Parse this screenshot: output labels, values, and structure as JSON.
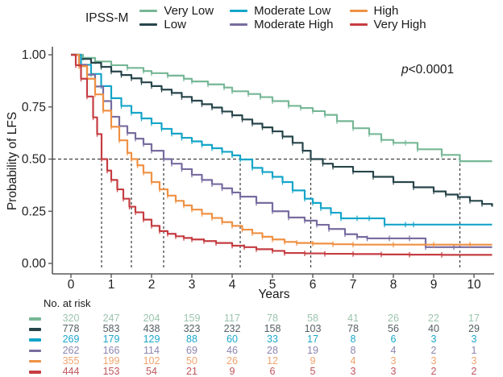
{
  "legend": {
    "title": "IPSS-M",
    "items": [
      {
        "label": "Very Low",
        "color": "#76b796"
      },
      {
        "label": "Low",
        "color": "#27454b"
      },
      {
        "label": "Moderate Low",
        "color": "#14a5c9"
      },
      {
        "label": "Moderate High",
        "color": "#786c9f"
      },
      {
        "label": "High",
        "color": "#ef9143"
      },
      {
        "label": "Very High",
        "color": "#c53d42"
      }
    ]
  },
  "pvalue": {
    "italic_part": "p",
    "rest": "<0.0001"
  },
  "chart_data": {
    "type": "line",
    "subtype": "kaplan-meier-step",
    "title": "",
    "xlabel": "Years",
    "ylabel": "Probability of LFS",
    "xlim": [
      -0.45,
      10.75
    ],
    "ylim": [
      0,
      1.04
    ],
    "xticks": [
      0,
      1,
      2,
      3,
      4,
      5,
      6,
      7,
      8,
      9,
      10
    ],
    "ytick_labels": [
      "1.00",
      "0.75",
      "0.50",
      "0.25",
      "0.00"
    ],
    "ytick_values": [
      1.0,
      0.75,
      0.5,
      0.25,
      0.0
    ],
    "grid": false,
    "legend_position": "top",
    "annotation": "p<0.0001",
    "axis_color": "#58595b",
    "dashed_color": "#3f3f3f",
    "median_line_y": 0.5,
    "median_lines_x": [
      0.76,
      1.5,
      2.3,
      4.2,
      5.95,
      9.65
    ],
    "series": [
      {
        "name": "Very Low",
        "color": "#76b796",
        "points": [
          [
            0,
            1.0
          ],
          [
            0.3,
            0.985
          ],
          [
            0.6,
            0.968
          ],
          [
            1,
            0.95
          ],
          [
            1.4,
            0.937
          ],
          [
            1.8,
            0.922
          ],
          [
            2,
            0.912
          ],
          [
            2.4,
            0.9
          ],
          [
            2.8,
            0.885
          ],
          [
            3,
            0.872
          ],
          [
            3.4,
            0.858
          ],
          [
            3.8,
            0.843
          ],
          [
            4,
            0.825
          ],
          [
            4.4,
            0.812
          ],
          [
            4.7,
            0.797
          ],
          [
            5,
            0.778
          ],
          [
            5.4,
            0.755
          ],
          [
            5.7,
            0.745
          ],
          [
            6,
            0.73
          ],
          [
            6.3,
            0.712
          ],
          [
            6.6,
            0.682
          ],
          [
            7,
            0.648
          ],
          [
            7.4,
            0.62
          ],
          [
            7.7,
            0.592
          ],
          [
            8,
            0.578
          ],
          [
            8.3,
            0.578
          ],
          [
            8.6,
            0.547
          ],
          [
            9.2,
            0.52
          ],
          [
            9.65,
            0.49
          ],
          [
            10.45,
            0.49
          ]
        ]
      },
      {
        "name": "Low",
        "color": "#27454b",
        "points": [
          [
            0,
            1.0
          ],
          [
            0.25,
            0.98
          ],
          [
            0.5,
            0.962
          ],
          [
            0.75,
            0.942
          ],
          [
            1,
            0.92
          ],
          [
            1.25,
            0.903
          ],
          [
            1.5,
            0.887
          ],
          [
            1.75,
            0.868
          ],
          [
            2,
            0.85
          ],
          [
            2.25,
            0.833
          ],
          [
            2.5,
            0.817
          ],
          [
            2.75,
            0.798
          ],
          [
            3,
            0.78
          ],
          [
            3.25,
            0.763
          ],
          [
            3.5,
            0.747
          ],
          [
            3.75,
            0.728
          ],
          [
            4,
            0.71
          ],
          [
            4.25,
            0.69
          ],
          [
            4.5,
            0.67
          ],
          [
            4.75,
            0.652
          ],
          [
            5,
            0.633
          ],
          [
            5.25,
            0.608
          ],
          [
            5.5,
            0.578
          ],
          [
            5.75,
            0.54
          ],
          [
            5.95,
            0.5
          ],
          [
            6.25,
            0.478
          ],
          [
            6.5,
            0.463
          ],
          [
            7,
            0.44
          ],
          [
            7.5,
            0.415
          ],
          [
            8,
            0.39
          ],
          [
            8.5,
            0.365
          ],
          [
            9,
            0.345
          ],
          [
            9.3,
            0.33
          ],
          [
            9.6,
            0.318
          ],
          [
            9.9,
            0.3
          ],
          [
            10.2,
            0.285
          ],
          [
            10.45,
            0.272
          ]
        ]
      },
      {
        "name": "Moderate Low",
        "color": "#14a5c9",
        "points": [
          [
            0,
            1.0
          ],
          [
            0.25,
            0.952
          ],
          [
            0.5,
            0.908
          ],
          [
            0.75,
            0.85
          ],
          [
            1,
            0.792
          ],
          [
            1.25,
            0.755
          ],
          [
            1.5,
            0.722
          ],
          [
            1.75,
            0.695
          ],
          [
            2,
            0.672
          ],
          [
            2.25,
            0.645
          ],
          [
            2.5,
            0.622
          ],
          [
            2.75,
            0.602
          ],
          [
            3,
            0.585
          ],
          [
            3.25,
            0.568
          ],
          [
            3.5,
            0.552
          ],
          [
            3.75,
            0.535
          ],
          [
            4,
            0.518
          ],
          [
            4.2,
            0.498
          ],
          [
            4.5,
            0.458
          ],
          [
            4.75,
            0.438
          ],
          [
            5,
            0.415
          ],
          [
            5.25,
            0.39
          ],
          [
            5.5,
            0.35
          ],
          [
            5.8,
            0.31
          ],
          [
            6,
            0.29
          ],
          [
            6.2,
            0.265
          ],
          [
            6.45,
            0.243
          ],
          [
            6.7,
            0.216
          ],
          [
            7.1,
            0.216
          ],
          [
            7.4,
            0.216
          ],
          [
            7.78,
            0.186
          ],
          [
            8.3,
            0.186
          ],
          [
            8.5,
            0.186
          ],
          [
            10.45,
            0.186
          ]
        ]
      },
      {
        "name": "Moderate High",
        "color": "#786c9f",
        "points": [
          [
            0,
            1.0
          ],
          [
            0.2,
            0.952
          ],
          [
            0.4,
            0.905
          ],
          [
            0.6,
            0.848
          ],
          [
            0.8,
            0.778
          ],
          [
            1,
            0.703
          ],
          [
            1.2,
            0.658
          ],
          [
            1.4,
            0.625
          ],
          [
            1.6,
            0.598
          ],
          [
            1.8,
            0.572
          ],
          [
            2,
            0.54
          ],
          [
            2.3,
            0.5
          ],
          [
            2.5,
            0.478
          ],
          [
            2.75,
            0.452
          ],
          [
            3,
            0.425
          ],
          [
            3.25,
            0.4
          ],
          [
            3.5,
            0.38
          ],
          [
            3.75,
            0.36
          ],
          [
            4,
            0.34
          ],
          [
            4.2,
            0.32
          ],
          [
            4.6,
            0.29
          ],
          [
            5,
            0.25
          ],
          [
            5.4,
            0.22
          ],
          [
            5.8,
            0.205
          ],
          [
            6.1,
            0.185
          ],
          [
            6.4,
            0.165
          ],
          [
            6.8,
            0.14
          ],
          [
            7.1,
            0.127
          ],
          [
            7.35,
            0.12
          ],
          [
            7.9,
            0.12
          ],
          [
            8.4,
            0.12
          ],
          [
            8.8,
            0.078
          ],
          [
            9.5,
            0.078
          ],
          [
            10.45,
            0.078
          ]
        ]
      },
      {
        "name": "High",
        "color": "#ef9143",
        "points": [
          [
            0,
            1.0
          ],
          [
            0.2,
            0.945
          ],
          [
            0.4,
            0.885
          ],
          [
            0.6,
            0.81
          ],
          [
            0.8,
            0.732
          ],
          [
            1,
            0.655
          ],
          [
            1.2,
            0.59
          ],
          [
            1.4,
            0.53
          ],
          [
            1.5,
            0.5
          ],
          [
            1.65,
            0.47
          ],
          [
            1.8,
            0.435
          ],
          [
            2,
            0.39
          ],
          [
            2.2,
            0.355
          ],
          [
            2.4,
            0.325
          ],
          [
            2.6,
            0.3
          ],
          [
            2.8,
            0.278
          ],
          [
            3,
            0.258
          ],
          [
            3.25,
            0.238
          ],
          [
            3.5,
            0.218
          ],
          [
            3.75,
            0.198
          ],
          [
            4,
            0.18
          ],
          [
            4.25,
            0.162
          ],
          [
            4.5,
            0.145
          ],
          [
            4.75,
            0.128
          ],
          [
            5,
            0.115
          ],
          [
            5.3,
            0.103
          ],
          [
            5.6,
            0.098
          ],
          [
            6,
            0.095
          ],
          [
            6.5,
            0.092
          ],
          [
            7,
            0.09
          ],
          [
            8,
            0.09
          ],
          [
            9,
            0.09
          ],
          [
            9.9,
            0.09
          ],
          [
            10.45,
            0.09
          ]
        ]
      },
      {
        "name": "Very High",
        "color": "#c53d42",
        "points": [
          [
            0,
            1.0
          ],
          [
            0.12,
            0.95
          ],
          [
            0.25,
            0.885
          ],
          [
            0.4,
            0.8
          ],
          [
            0.55,
            0.7
          ],
          [
            0.65,
            0.62
          ],
          [
            0.76,
            0.5
          ],
          [
            0.9,
            0.445
          ],
          [
            1,
            0.4
          ],
          [
            1.15,
            0.355
          ],
          [
            1.3,
            0.31
          ],
          [
            1.45,
            0.272
          ],
          [
            1.6,
            0.245
          ],
          [
            1.8,
            0.21
          ],
          [
            2,
            0.18
          ],
          [
            2.2,
            0.155
          ],
          [
            2.4,
            0.142
          ],
          [
            2.6,
            0.13
          ],
          [
            2.8,
            0.122
          ],
          [
            3,
            0.115
          ],
          [
            3.3,
            0.107
          ],
          [
            3.6,
            0.098
          ],
          [
            4,
            0.085
          ],
          [
            4.3,
            0.078
          ],
          [
            4.6,
            0.068
          ],
          [
            5,
            0.06
          ],
          [
            5.3,
            0.05
          ],
          [
            5.8,
            0.048
          ],
          [
            6.3,
            0.046
          ],
          [
            7,
            0.045
          ],
          [
            7.7,
            0.043
          ],
          [
            8.4,
            0.042
          ],
          [
            9.2,
            0.041
          ],
          [
            10.45,
            0.041
          ]
        ]
      }
    ]
  },
  "risk_table": {
    "label": "No. at risk",
    "timepoints": [
      0,
      1,
      2,
      3,
      4,
      5,
      6,
      7,
      8,
      9,
      10
    ],
    "rows": [
      {
        "name": "Very Low",
        "color": "#9cc4ae",
        "swatch": "#76b796",
        "values": [
          320,
          247,
          204,
          159,
          117,
          78,
          58,
          41,
          26,
          22,
          17
        ]
      },
      {
        "name": "Low",
        "color": "#545e62",
        "swatch": "#27454b",
        "values": [
          778,
          583,
          438,
          323,
          232,
          158,
          103,
          78,
          56,
          40,
          29
        ]
      },
      {
        "name": "Moderate Low",
        "color": "#1ca7ca",
        "swatch": "#14a5c9",
        "values": [
          269,
          179,
          129,
          88,
          60,
          33,
          17,
          8,
          6,
          3,
          3
        ]
      },
      {
        "name": "Moderate High",
        "color": "#8d85ae",
        "swatch": "#786c9f",
        "values": [
          262,
          166,
          114,
          69,
          46,
          28,
          19,
          8,
          4,
          2,
          1
        ]
      },
      {
        "name": "High",
        "color": "#f0a46e",
        "swatch": "#ef9143",
        "values": [
          355,
          199,
          102,
          50,
          26,
          12,
          9,
          4,
          3,
          3,
          3
        ]
      },
      {
        "name": "Very High",
        "color": "#c0555c",
        "swatch": "#c53d42",
        "values": [
          444,
          153,
          54,
          21,
          9,
          6,
          5,
          3,
          3,
          2,
          2
        ]
      }
    ]
  }
}
